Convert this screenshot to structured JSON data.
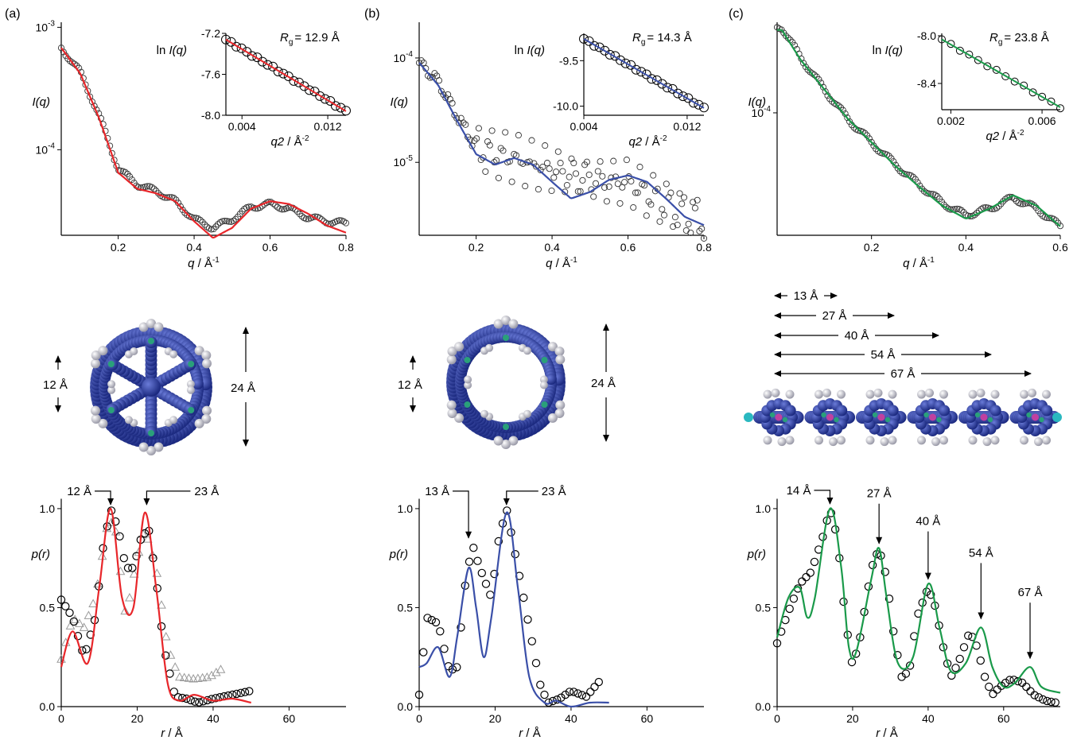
{
  "colors": {
    "a": "#e8262a",
    "b": "#3a4fa8",
    "c": "#1a9a4a",
    "marker": "#000000",
    "triangle": "#9a9a9a",
    "molecule": "#2e3f9e"
  },
  "panel_labels": [
    "(a)",
    "(b)",
    "(c)"
  ],
  "axis_labels": {
    "iq_y": "I(q)",
    "iq_x": "q / Å-1",
    "inset_y": "ln I(q)",
    "inset_x": "q2 / Å-2",
    "pr_y": "p(r)",
    "pr_x": "r / Å",
    "rg_prefix": "R",
    "rg_sub": "g"
  },
  "annotations": {
    "a": {
      "rg": "= 12.9 Å",
      "mol_small": "12 Å",
      "mol_big": "24 Å",
      "pr_arrows": [
        "12 Å",
        "23 Å"
      ]
    },
    "b": {
      "rg": "= 14.3 Å",
      "mol_small": "12 Å",
      "mol_big": "24 Å",
      "pr_arrows": [
        "13 Å",
        "23 Å"
      ]
    },
    "c": {
      "rg": "= 23.8 Å",
      "dims": [
        "13 Å",
        "27 Å",
        "40 Å",
        "54 Å",
        "67 Å"
      ],
      "pr_arrows": [
        "14 Å",
        "27 Å",
        "40 Å",
        "54 Å",
        "67 Å"
      ]
    }
  },
  "chart_data": [
    {
      "panel": "(a)",
      "kind": "scattering",
      "type": "scatter+line",
      "xlabel": "q / Å-1",
      "ylabel": "I(q)",
      "yscale": "log",
      "xlim": [
        0.05,
        0.8
      ],
      "ylim": [
        2e-05,
        0.0011
      ],
      "xticks": [
        "0.2",
        "0.4",
        "0.6",
        "0.8"
      ],
      "yticks": [
        "10-4",
        "10-3"
      ],
      "fit_points": [
        [
          0.05,
          0.00068
        ],
        [
          0.1,
          0.00042
        ],
        [
          0.15,
          0.00018
        ],
        [
          0.2,
          6.5e-05
        ],
        [
          0.25,
          4.8e-05
        ],
        [
          0.3,
          4.4e-05
        ],
        [
          0.35,
          3.8e-05
        ],
        [
          0.4,
          2.6e-05
        ],
        [
          0.45,
          1.9e-05
        ],
        [
          0.5,
          2.3e-05
        ],
        [
          0.55,
          3.3e-05
        ],
        [
          0.6,
          3.8e-05
        ],
        [
          0.65,
          3.6e-05
        ],
        [
          0.7,
          3e-05
        ],
        [
          0.75,
          2.4e-05
        ],
        [
          0.8,
          2.1e-05
        ]
      ],
      "data_points": [
        [
          0.05,
          0.00068
        ],
        [
          0.1,
          0.00043
        ],
        [
          0.15,
          0.00019
        ],
        [
          0.2,
          7e-05
        ],
        [
          0.25,
          5.2e-05
        ],
        [
          0.3,
          4.6e-05
        ],
        [
          0.35,
          3.8e-05
        ],
        [
          0.4,
          2.7e-05
        ],
        [
          0.45,
          2.3e-05
        ],
        [
          0.5,
          2.7e-05
        ],
        [
          0.55,
          3.4e-05
        ],
        [
          0.6,
          3.6e-05
        ],
        [
          0.65,
          3.3e-05
        ],
        [
          0.7,
          2.8e-05
        ],
        [
          0.75,
          2.6e-05
        ],
        [
          0.8,
          2.5e-05
        ]
      ]
    },
    {
      "panel": "(a)",
      "kind": "guinier",
      "type": "scatter+line",
      "xlabel": "q2 / Å-2",
      "ylabel": "ln I(q)",
      "rg": "12.9 Å",
      "xlim": [
        0.0025,
        0.0137
      ],
      "ylim": [
        -8.0,
        -7.2
      ],
      "xticks": [
        "0.004",
        "0.012"
      ],
      "yticks": [
        "-8.0",
        "-7.6",
        "-7.2"
      ],
      "fit_line": [
        [
          0.0025,
          -7.26
        ],
        [
          0.0137,
          -7.96
        ]
      ]
    },
    {
      "panel": "(a)",
      "kind": "pair-distance",
      "type": "scatter+line",
      "xlabel": "r / Å",
      "ylabel": "p(r)",
      "xlim": [
        0,
        75
      ],
      "ylim": [
        0,
        1.1
      ],
      "xticks": [
        "0",
        "20",
        "40",
        "60"
      ],
      "yticks": [
        "0.0",
        "0.5",
        "1.0"
      ],
      "fit_points": [
        [
          0,
          0.2
        ],
        [
          3,
          0.38
        ],
        [
          7,
          0.22
        ],
        [
          10,
          0.6
        ],
        [
          13,
          1.0
        ],
        [
          16,
          0.55
        ],
        [
          19,
          0.5
        ],
        [
          22,
          0.98
        ],
        [
          25,
          0.6
        ],
        [
          28,
          0.12
        ],
        [
          31,
          0.03
        ],
        [
          35,
          0.06
        ],
        [
          40,
          0.03
        ],
        [
          45,
          0.04
        ],
        [
          50,
          0.02
        ]
      ],
      "circle_points": [
        [
          0,
          0.54
        ],
        [
          3,
          0.45
        ],
        [
          6,
          0.25
        ],
        [
          9,
          0.45
        ],
        [
          11,
          0.8
        ],
        [
          13,
          1.0
        ],
        [
          15,
          0.9
        ],
        [
          17,
          0.7
        ],
        [
          19,
          0.7
        ],
        [
          21,
          0.85
        ],
        [
          23,
          0.9
        ],
        [
          25,
          0.65
        ],
        [
          27,
          0.3
        ],
        [
          30,
          0.05
        ],
        [
          33,
          0.04
        ],
        [
          36,
          0.02
        ],
        [
          40,
          0.04
        ],
        [
          45,
          0.06
        ],
        [
          50,
          0.08
        ]
      ],
      "triangle_points": [
        [
          0,
          0.24
        ],
        [
          3,
          0.45
        ],
        [
          6,
          0.4
        ],
        [
          9,
          0.55
        ],
        [
          12,
          0.9
        ],
        [
          14,
          0.95
        ],
        [
          17,
          0.45
        ],
        [
          20,
          0.75
        ],
        [
          22,
          0.9
        ],
        [
          25,
          0.7
        ],
        [
          28,
          0.3
        ],
        [
          31,
          0.15
        ],
        [
          35,
          0.14
        ],
        [
          39,
          0.15
        ],
        [
          43,
          0.2
        ]
      ]
    },
    {
      "panel": "(b)",
      "kind": "scattering",
      "type": "scatter+line",
      "xlabel": "q / Å-1",
      "ylabel": "I(q)",
      "yscale": "log",
      "xlim": [
        0.05,
        0.8
      ],
      "ylim": [
        2e-06,
        0.00022
      ],
      "xticks": [
        "0.2",
        "0.4",
        "0.6",
        "0.8"
      ],
      "yticks": [
        "10-5",
        "10-4"
      ],
      "fit_points": [
        [
          0.05,
          9e-05
        ],
        [
          0.1,
          5.5e-05
        ],
        [
          0.15,
          2.5e-05
        ],
        [
          0.2,
          1.2e-05
        ],
        [
          0.25,
          9.5e-06
        ],
        [
          0.3,
          1.1e-05
        ],
        [
          0.35,
          9.5e-06
        ],
        [
          0.4,
          6.5e-06
        ],
        [
          0.45,
          4.5e-06
        ],
        [
          0.5,
          5.2e-06
        ],
        [
          0.55,
          6.8e-06
        ],
        [
          0.6,
          7.5e-06
        ],
        [
          0.65,
          6.5e-06
        ],
        [
          0.7,
          4.5e-06
        ],
        [
          0.75,
          3e-06
        ],
        [
          0.8,
          2.5e-06
        ]
      ],
      "data_points": [
        [
          0.05,
          9e-05
        ],
        [
          0.1,
          6e-05
        ],
        [
          0.15,
          2.8e-05
        ],
        [
          0.2,
          1.4e-05
        ],
        [
          0.25,
          1.2e-05
        ],
        [
          0.3,
          1.1e-05
        ],
        [
          0.35,
          9.5e-06
        ],
        [
          0.4,
          8.5e-06
        ],
        [
          0.45,
          7.5e-06
        ],
        [
          0.5,
          7e-06
        ],
        [
          0.55,
          6.5e-06
        ],
        [
          0.6,
          6.5e-06
        ],
        [
          0.65,
          5e-06
        ],
        [
          0.7,
          4e-06
        ],
        [
          0.75,
          3.2e-06
        ],
        [
          0.8,
          2.8e-06
        ]
      ]
    },
    {
      "panel": "(b)",
      "kind": "guinier",
      "type": "scatter+line",
      "xlabel": "q2 / Å-2",
      "ylabel": "ln I(q)",
      "rg": "14.3 Å",
      "xlim": [
        0.004,
        0.0133
      ],
      "ylim": [
        -10.1,
        -9.2
      ],
      "xticks": [
        "0.004",
        "0.012"
      ],
      "yticks": [
        "-10.0",
        "-9.5"
      ],
      "fit_line": [
        [
          0.004,
          -9.26
        ],
        [
          0.0133,
          -10.02
        ]
      ]
    },
    {
      "panel": "(b)",
      "kind": "pair-distance",
      "type": "scatter+line",
      "xlabel": "r / Å",
      "ylabel": "p(r)",
      "xlim": [
        0,
        75
      ],
      "ylim": [
        0,
        1.1
      ],
      "xticks": [
        "0",
        "20",
        "40",
        "60"
      ],
      "yticks": [
        "0.0",
        "0.5",
        "1.0"
      ],
      "fit_points": [
        [
          0,
          0.2
        ],
        [
          2,
          0.22
        ],
        [
          5,
          0.3
        ],
        [
          8,
          0.15
        ],
        [
          10,
          0.35
        ],
        [
          13,
          0.7
        ],
        [
          15,
          0.5
        ],
        [
          17,
          0.25
        ],
        [
          19,
          0.45
        ],
        [
          23,
          0.98
        ],
        [
          26,
          0.6
        ],
        [
          29,
          0.15
        ],
        [
          33,
          0.02
        ],
        [
          36,
          0.03
        ],
        [
          40,
          0.0
        ],
        [
          45,
          0.02
        ],
        [
          50,
          0.02
        ]
      ],
      "circle_points": [
        [
          0,
          0.06
        ],
        [
          2,
          0.45
        ],
        [
          5,
          0.42
        ],
        [
          8,
          0.18
        ],
        [
          10,
          0.2
        ],
        [
          12,
          0.6
        ],
        [
          14,
          0.82
        ],
        [
          16,
          0.7
        ],
        [
          19,
          0.55
        ],
        [
          21,
          0.85
        ],
        [
          23,
          1.0
        ],
        [
          26,
          0.7
        ],
        [
          29,
          0.4
        ],
        [
          32,
          0.1
        ],
        [
          34,
          0.02
        ],
        [
          37,
          0.04
        ],
        [
          40,
          0.08
        ],
        [
          44,
          0.05
        ],
        [
          48,
          0.14
        ]
      ]
    },
    {
      "panel": "(c)",
      "kind": "scattering",
      "type": "scatter+line",
      "xlabel": "q / Å-1",
      "ylabel": "I(q)",
      "yscale": "log",
      "xlim": [
        0.0,
        0.6
      ],
      "ylim": [
        1.2e-05,
        0.00048
      ],
      "xticks": [
        "0.2",
        "0.4",
        "0.6"
      ],
      "yticks": [
        "10-4"
      ],
      "fit_points": [
        [
          0.01,
          0.00042
        ],
        [
          0.05,
          0.00025
        ],
        [
          0.1,
          0.00015
        ],
        [
          0.15,
          9e-05
        ],
        [
          0.2,
          6e-05
        ],
        [
          0.25,
          4e-05
        ],
        [
          0.3,
          2.8e-05
        ],
        [
          0.35,
          2e-05
        ],
        [
          0.4,
          1.6e-05
        ],
        [
          0.45,
          1.9e-05
        ],
        [
          0.5,
          2.4e-05
        ],
        [
          0.55,
          2e-05
        ],
        [
          0.6,
          1.4e-05
        ]
      ],
      "data_points": [
        [
          0.01,
          0.00044
        ],
        [
          0.05,
          0.00026
        ],
        [
          0.1,
          0.00015
        ],
        [
          0.15,
          9e-05
        ],
        [
          0.2,
          6e-05
        ],
        [
          0.25,
          4.1e-05
        ],
        [
          0.3,
          2.9e-05
        ],
        [
          0.35,
          2.1e-05
        ],
        [
          0.4,
          1.7e-05
        ],
        [
          0.45,
          1.9e-05
        ],
        [
          0.5,
          2.3e-05
        ],
        [
          0.55,
          1.9e-05
        ],
        [
          0.6,
          1.4e-05
        ]
      ]
    },
    {
      "panel": "(c)",
      "kind": "guinier",
      "type": "scatter+line",
      "xlabel": "q2 / Å-2",
      "ylabel": "ln I(q)",
      "rg": "23.8 Å",
      "xlim": [
        0.0016,
        0.0068
      ],
      "ylim": [
        -8.62,
        -7.98
      ],
      "xticks": [
        "0.002",
        "0.006"
      ],
      "yticks": [
        "-8.4",
        "-8.0"
      ],
      "fit_line": [
        [
          0.0016,
          -8.03
        ],
        [
          0.0068,
          -8.6
        ]
      ]
    },
    {
      "panel": "(c)",
      "kind": "pair-distance",
      "type": "scatter+line",
      "xlabel": "r / Å",
      "ylabel": "p(r)",
      "xlim": [
        0,
        75
      ],
      "ylim": [
        0,
        1.1
      ],
      "xticks": [
        "0",
        "20",
        "40",
        "60"
      ],
      "yticks": [
        "0.0",
        "0.5",
        "1.0"
      ],
      "fit_points": [
        [
          0,
          0.35
        ],
        [
          3,
          0.55
        ],
        [
          6,
          0.6
        ],
        [
          8,
          0.45
        ],
        [
          10,
          0.55
        ],
        [
          14,
          1.0
        ],
        [
          17,
          0.7
        ],
        [
          19,
          0.3
        ],
        [
          21,
          0.28
        ],
        [
          25,
          0.65
        ],
        [
          27,
          0.8
        ],
        [
          29,
          0.55
        ],
        [
          32,
          0.22
        ],
        [
          36,
          0.25
        ],
        [
          40,
          0.62
        ],
        [
          43,
          0.4
        ],
        [
          46,
          0.18
        ],
        [
          50,
          0.22
        ],
        [
          54,
          0.4
        ],
        [
          57,
          0.2
        ],
        [
          60,
          0.1
        ],
        [
          63,
          0.12
        ],
        [
          67,
          0.2
        ],
        [
          70,
          0.1
        ],
        [
          75,
          0.07
        ]
      ],
      "circle_points": [
        [
          0,
          0.32
        ],
        [
          3,
          0.48
        ],
        [
          6,
          0.62
        ],
        [
          9,
          0.68
        ],
        [
          12,
          0.85
        ],
        [
          14,
          1.0
        ],
        [
          16,
          0.85
        ],
        [
          18,
          0.45
        ],
        [
          20,
          0.2
        ],
        [
          22,
          0.35
        ],
        [
          25,
          0.7
        ],
        [
          27,
          0.8
        ],
        [
          29,
          0.65
        ],
        [
          31,
          0.35
        ],
        [
          33,
          0.15
        ],
        [
          35,
          0.18
        ],
        [
          37,
          0.45
        ],
        [
          40,
          0.6
        ],
        [
          42,
          0.5
        ],
        [
          44,
          0.3
        ],
        [
          46,
          0.15
        ],
        [
          48,
          0.22
        ],
        [
          51,
          0.38
        ],
        [
          53,
          0.3
        ],
        [
          55,
          0.15
        ],
        [
          57,
          0.06
        ],
        [
          59,
          0.1
        ],
        [
          62,
          0.14
        ],
        [
          65,
          0.12
        ],
        [
          68,
          0.06
        ],
        [
          71,
          0.03
        ],
        [
          74,
          0.02
        ]
      ]
    }
  ]
}
